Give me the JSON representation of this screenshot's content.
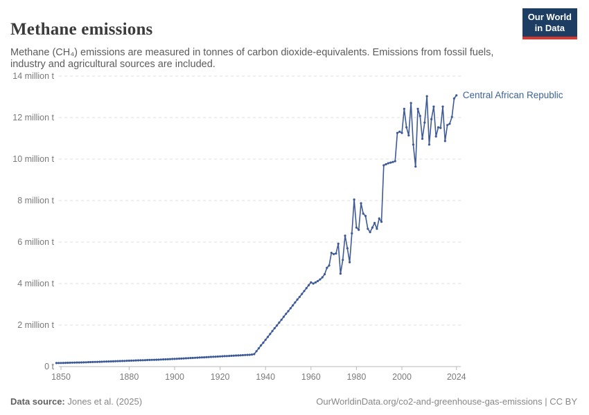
{
  "header": {
    "title": "Methane emissions",
    "subtitle": "Methane (CH₄) emissions are measured in tonnes of carbon dioxide-equivalents. Emissions from fossil fuels, industry and agricultural sources are included.",
    "logo": {
      "line1": "Our World",
      "line2": "in Data"
    }
  },
  "footer": {
    "source_label": "Data source:",
    "source_value": " Jones et al. (2025)",
    "attribution": "OurWorldinData.org/co2-and-greenhouse-gas-emissions | CC BY"
  },
  "colors": {
    "line": "#3d5a96",
    "entity_label": "#3d6295",
    "grid": "#dddddd",
    "axis": "#b8b8b8",
    "tick_text": "#7a7a7a",
    "logo_bg": "#1d3d63",
    "logo_red": "#d8372e"
  },
  "chart_data": {
    "type": "line",
    "title": "Methane emissions",
    "values_unit": "million tonnes of carbon dioxide-equivalents",
    "grid": "dashed-horizontal",
    "legend_position": "label-at-line-end",
    "markers": "circle-every-year",
    "ylim": [
      0,
      14
    ],
    "xlim": [
      1848,
      2026
    ],
    "y_ticks": [
      {
        "v": 0,
        "label": "0 t"
      },
      {
        "v": 2,
        "label": "2 million t"
      },
      {
        "v": 4,
        "label": "4 million t"
      },
      {
        "v": 6,
        "label": "6 million t"
      },
      {
        "v": 8,
        "label": "8 million t"
      },
      {
        "v": 10,
        "label": "10 million t"
      },
      {
        "v": 12,
        "label": "12 million t"
      },
      {
        "v": 14,
        "label": "14 million t"
      }
    ],
    "x_ticks": [
      1850,
      1880,
      1900,
      1920,
      1940,
      1960,
      1980,
      2000,
      2024
    ],
    "x": [
      1848,
      1849,
      1850,
      1851,
      1852,
      1853,
      1854,
      1855,
      1856,
      1857,
      1858,
      1859,
      1860,
      1861,
      1862,
      1863,
      1864,
      1865,
      1866,
      1867,
      1868,
      1869,
      1870,
      1871,
      1872,
      1873,
      1874,
      1875,
      1876,
      1877,
      1878,
      1879,
      1880,
      1881,
      1882,
      1883,
      1884,
      1885,
      1886,
      1887,
      1888,
      1889,
      1890,
      1891,
      1892,
      1893,
      1894,
      1895,
      1896,
      1897,
      1898,
      1899,
      1900,
      1901,
      1902,
      1903,
      1904,
      1905,
      1906,
      1907,
      1908,
      1909,
      1910,
      1911,
      1912,
      1913,
      1914,
      1915,
      1916,
      1917,
      1918,
      1919,
      1920,
      1921,
      1922,
      1923,
      1924,
      1925,
      1926,
      1927,
      1928,
      1929,
      1930,
      1931,
      1932,
      1933,
      1934,
      1935,
      1936,
      1937,
      1938,
      1939,
      1940,
      1941,
      1942,
      1943,
      1944,
      1945,
      1946,
      1947,
      1948,
      1949,
      1950,
      1951,
      1952,
      1953,
      1954,
      1955,
      1956,
      1957,
      1958,
      1959,
      1960,
      1961,
      1962,
      1963,
      1964,
      1965,
      1966,
      1967,
      1968,
      1969,
      1970,
      1971,
      1972,
      1973,
      1974,
      1975,
      1976,
      1977,
      1978,
      1979,
      1980,
      1981,
      1982,
      1983,
      1984,
      1985,
      1986,
      1987,
      1988,
      1989,
      1990,
      1991,
      1992,
      1993,
      1994,
      1995,
      1996,
      1997,
      1998,
      1999,
      2000,
      2001,
      2002,
      2003,
      2004,
      2005,
      2006,
      2007,
      2008,
      2009,
      2010,
      2011,
      2012,
      2013,
      2014,
      2015,
      2016,
      2017,
      2018,
      2019,
      2020,
      2021,
      2022,
      2023,
      2024
    ],
    "series": [
      {
        "name": "Central African Republic",
        "values": [
          0.17,
          0.172,
          0.175,
          0.178,
          0.18,
          0.183,
          0.186,
          0.189,
          0.192,
          0.195,
          0.198,
          0.201,
          0.205,
          0.208,
          0.212,
          0.215,
          0.219,
          0.223,
          0.227,
          0.231,
          0.235,
          0.239,
          0.243,
          0.247,
          0.251,
          0.255,
          0.259,
          0.263,
          0.267,
          0.271,
          0.275,
          0.279,
          0.283,
          0.287,
          0.291,
          0.295,
          0.299,
          0.303,
          0.307,
          0.311,
          0.315,
          0.319,
          0.323,
          0.327,
          0.331,
          0.335,
          0.34,
          0.345,
          0.35,
          0.355,
          0.36,
          0.365,
          0.37,
          0.376,
          0.382,
          0.388,
          0.394,
          0.4,
          0.406,
          0.412,
          0.418,
          0.424,
          0.43,
          0.436,
          0.442,
          0.448,
          0.454,
          0.46,
          0.466,
          0.472,
          0.478,
          0.484,
          0.49,
          0.496,
          0.502,
          0.508,
          0.514,
          0.52,
          0.526,
          0.532,
          0.538,
          0.544,
          0.55,
          0.556,
          0.562,
          0.568,
          0.58,
          0.6,
          0.74,
          0.88,
          1.02,
          1.15,
          1.29,
          1.43,
          1.57,
          1.71,
          1.85,
          1.98,
          2.12,
          2.26,
          2.4,
          2.54,
          2.67,
          2.81,
          2.95,
          3.09,
          3.23,
          3.36,
          3.5,
          3.64,
          3.78,
          3.92,
          4.06,
          4.0,
          4.06,
          4.12,
          4.2,
          4.3,
          4.45,
          4.76,
          4.87,
          5.48,
          5.42,
          5.45,
          5.92,
          4.48,
          5.14,
          6.31,
          5.7,
          5.03,
          6.42,
          8.05,
          6.7,
          6.59,
          7.87,
          7.37,
          7.26,
          6.64,
          6.48,
          6.7,
          6.92,
          6.64,
          7.14,
          6.98,
          9.7,
          9.75,
          9.8,
          9.83,
          9.86,
          9.9,
          11.26,
          11.32,
          11.26,
          12.42,
          11.53,
          11.14,
          12.7,
          10.7,
          9.64,
          12.42,
          12.08,
          10.98,
          11.76,
          13.03,
          10.7,
          11.92,
          12.53,
          11.09,
          11.53,
          11.5,
          12.53,
          10.87,
          11.64,
          11.7,
          12.03,
          12.92,
          13.07
        ]
      }
    ]
  }
}
